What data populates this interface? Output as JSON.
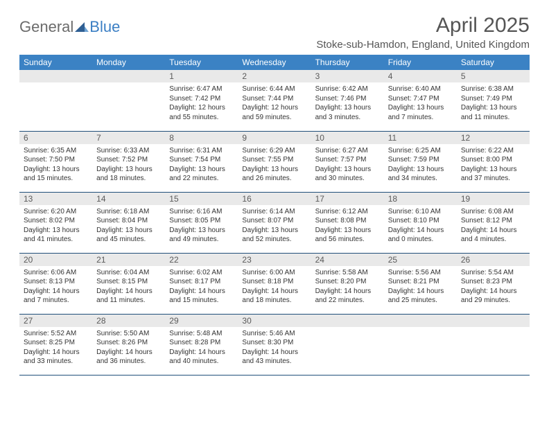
{
  "brand": {
    "part1": "General",
    "part2": "Blue"
  },
  "title": "April 2025",
  "location": "Stoke-sub-Hamdon, England, United Kingdom",
  "colors": {
    "header_bg": "#3b82c4",
    "header_text": "#ffffff",
    "daynum_bg": "#e9e9e9",
    "rule": "#1f4e79",
    "logo_gray": "#6b6b6b",
    "logo_blue": "#3b7fc4"
  },
  "day_headers": [
    "Sunday",
    "Monday",
    "Tuesday",
    "Wednesday",
    "Thursday",
    "Friday",
    "Saturday"
  ],
  "weeks": [
    [
      {
        "n": "",
        "sunrise": "",
        "sunset": "",
        "daylight": ""
      },
      {
        "n": "",
        "sunrise": "",
        "sunset": "",
        "daylight": ""
      },
      {
        "n": "1",
        "sunrise": "Sunrise: 6:47 AM",
        "sunset": "Sunset: 7:42 PM",
        "daylight": "Daylight: 12 hours and 55 minutes."
      },
      {
        "n": "2",
        "sunrise": "Sunrise: 6:44 AM",
        "sunset": "Sunset: 7:44 PM",
        "daylight": "Daylight: 12 hours and 59 minutes."
      },
      {
        "n": "3",
        "sunrise": "Sunrise: 6:42 AM",
        "sunset": "Sunset: 7:46 PM",
        "daylight": "Daylight: 13 hours and 3 minutes."
      },
      {
        "n": "4",
        "sunrise": "Sunrise: 6:40 AM",
        "sunset": "Sunset: 7:47 PM",
        "daylight": "Daylight: 13 hours and 7 minutes."
      },
      {
        "n": "5",
        "sunrise": "Sunrise: 6:38 AM",
        "sunset": "Sunset: 7:49 PM",
        "daylight": "Daylight: 13 hours and 11 minutes."
      }
    ],
    [
      {
        "n": "6",
        "sunrise": "Sunrise: 6:35 AM",
        "sunset": "Sunset: 7:50 PM",
        "daylight": "Daylight: 13 hours and 15 minutes."
      },
      {
        "n": "7",
        "sunrise": "Sunrise: 6:33 AM",
        "sunset": "Sunset: 7:52 PM",
        "daylight": "Daylight: 13 hours and 18 minutes."
      },
      {
        "n": "8",
        "sunrise": "Sunrise: 6:31 AM",
        "sunset": "Sunset: 7:54 PM",
        "daylight": "Daylight: 13 hours and 22 minutes."
      },
      {
        "n": "9",
        "sunrise": "Sunrise: 6:29 AM",
        "sunset": "Sunset: 7:55 PM",
        "daylight": "Daylight: 13 hours and 26 minutes."
      },
      {
        "n": "10",
        "sunrise": "Sunrise: 6:27 AM",
        "sunset": "Sunset: 7:57 PM",
        "daylight": "Daylight: 13 hours and 30 minutes."
      },
      {
        "n": "11",
        "sunrise": "Sunrise: 6:25 AM",
        "sunset": "Sunset: 7:59 PM",
        "daylight": "Daylight: 13 hours and 34 minutes."
      },
      {
        "n": "12",
        "sunrise": "Sunrise: 6:22 AM",
        "sunset": "Sunset: 8:00 PM",
        "daylight": "Daylight: 13 hours and 37 minutes."
      }
    ],
    [
      {
        "n": "13",
        "sunrise": "Sunrise: 6:20 AM",
        "sunset": "Sunset: 8:02 PM",
        "daylight": "Daylight: 13 hours and 41 minutes."
      },
      {
        "n": "14",
        "sunrise": "Sunrise: 6:18 AM",
        "sunset": "Sunset: 8:04 PM",
        "daylight": "Daylight: 13 hours and 45 minutes."
      },
      {
        "n": "15",
        "sunrise": "Sunrise: 6:16 AM",
        "sunset": "Sunset: 8:05 PM",
        "daylight": "Daylight: 13 hours and 49 minutes."
      },
      {
        "n": "16",
        "sunrise": "Sunrise: 6:14 AM",
        "sunset": "Sunset: 8:07 PM",
        "daylight": "Daylight: 13 hours and 52 minutes."
      },
      {
        "n": "17",
        "sunrise": "Sunrise: 6:12 AM",
        "sunset": "Sunset: 8:08 PM",
        "daylight": "Daylight: 13 hours and 56 minutes."
      },
      {
        "n": "18",
        "sunrise": "Sunrise: 6:10 AM",
        "sunset": "Sunset: 8:10 PM",
        "daylight": "Daylight: 14 hours and 0 minutes."
      },
      {
        "n": "19",
        "sunrise": "Sunrise: 6:08 AM",
        "sunset": "Sunset: 8:12 PM",
        "daylight": "Daylight: 14 hours and 4 minutes."
      }
    ],
    [
      {
        "n": "20",
        "sunrise": "Sunrise: 6:06 AM",
        "sunset": "Sunset: 8:13 PM",
        "daylight": "Daylight: 14 hours and 7 minutes."
      },
      {
        "n": "21",
        "sunrise": "Sunrise: 6:04 AM",
        "sunset": "Sunset: 8:15 PM",
        "daylight": "Daylight: 14 hours and 11 minutes."
      },
      {
        "n": "22",
        "sunrise": "Sunrise: 6:02 AM",
        "sunset": "Sunset: 8:17 PM",
        "daylight": "Daylight: 14 hours and 15 minutes."
      },
      {
        "n": "23",
        "sunrise": "Sunrise: 6:00 AM",
        "sunset": "Sunset: 8:18 PM",
        "daylight": "Daylight: 14 hours and 18 minutes."
      },
      {
        "n": "24",
        "sunrise": "Sunrise: 5:58 AM",
        "sunset": "Sunset: 8:20 PM",
        "daylight": "Daylight: 14 hours and 22 minutes."
      },
      {
        "n": "25",
        "sunrise": "Sunrise: 5:56 AM",
        "sunset": "Sunset: 8:21 PM",
        "daylight": "Daylight: 14 hours and 25 minutes."
      },
      {
        "n": "26",
        "sunrise": "Sunrise: 5:54 AM",
        "sunset": "Sunset: 8:23 PM",
        "daylight": "Daylight: 14 hours and 29 minutes."
      }
    ],
    [
      {
        "n": "27",
        "sunrise": "Sunrise: 5:52 AM",
        "sunset": "Sunset: 8:25 PM",
        "daylight": "Daylight: 14 hours and 33 minutes."
      },
      {
        "n": "28",
        "sunrise": "Sunrise: 5:50 AM",
        "sunset": "Sunset: 8:26 PM",
        "daylight": "Daylight: 14 hours and 36 minutes."
      },
      {
        "n": "29",
        "sunrise": "Sunrise: 5:48 AM",
        "sunset": "Sunset: 8:28 PM",
        "daylight": "Daylight: 14 hours and 40 minutes."
      },
      {
        "n": "30",
        "sunrise": "Sunrise: 5:46 AM",
        "sunset": "Sunset: 8:30 PM",
        "daylight": "Daylight: 14 hours and 43 minutes."
      },
      {
        "n": "",
        "sunrise": "",
        "sunset": "",
        "daylight": ""
      },
      {
        "n": "",
        "sunrise": "",
        "sunset": "",
        "daylight": ""
      },
      {
        "n": "",
        "sunrise": "",
        "sunset": "",
        "daylight": ""
      }
    ]
  ]
}
